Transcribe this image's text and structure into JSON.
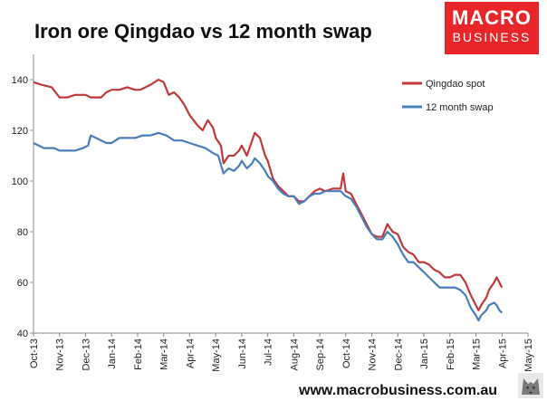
{
  "title": "Iron ore Qingdao vs 12 month swap",
  "logo": {
    "line1": "MACRO",
    "line2": "BUSINESS"
  },
  "footer": "www.macrobusiness.com.au",
  "colors": {
    "spot": "#c0393b",
    "swap": "#4a7ebb",
    "logo_bg": "#e8262a"
  },
  "chart_data": {
    "type": "line",
    "title": "Iron ore Qingdao vs 12 month swap",
    "xlabel": "",
    "ylabel": "",
    "ylim": [
      40,
      150
    ],
    "yticks": [
      40,
      60,
      80,
      100,
      120,
      140
    ],
    "x_ticks": [
      "Oct-13",
      "Nov-13",
      "Dec-13",
      "Jan-14",
      "Feb-14",
      "Mar-14",
      "Apr-14",
      "May-14",
      "Jun-14",
      "Jul-14",
      "Aug-14",
      "Sep-14",
      "Oct-14",
      "Nov-14",
      "Dec-14",
      "Jan-15",
      "Feb-15",
      "Mar-15",
      "Apr-15",
      "May-15"
    ],
    "grid": false,
    "legend_position": "top-right",
    "series": [
      {
        "name": "Qingdao spot",
        "color": "#c0393b",
        "points": [
          [
            0,
            139
          ],
          [
            0.3,
            138
          ],
          [
            0.7,
            137
          ],
          [
            1.0,
            133
          ],
          [
            1.3,
            133
          ],
          [
            1.6,
            134
          ],
          [
            2.0,
            134
          ],
          [
            2.2,
            133
          ],
          [
            2.6,
            133
          ],
          [
            2.8,
            135
          ],
          [
            3.0,
            136
          ],
          [
            3.3,
            136
          ],
          [
            3.6,
            137
          ],
          [
            3.9,
            136
          ],
          [
            4.1,
            136
          ],
          [
            4.5,
            138
          ],
          [
            4.8,
            140
          ],
          [
            5.0,
            139
          ],
          [
            5.2,
            134
          ],
          [
            5.4,
            135
          ],
          [
            5.6,
            133
          ],
          [
            5.8,
            130
          ],
          [
            6.0,
            126
          ],
          [
            6.3,
            122
          ],
          [
            6.5,
            120
          ],
          [
            6.7,
            124
          ],
          [
            6.9,
            121
          ],
          [
            7.0,
            117
          ],
          [
            7.2,
            114
          ],
          [
            7.3,
            107
          ],
          [
            7.5,
            110
          ],
          [
            7.7,
            110
          ],
          [
            7.9,
            112
          ],
          [
            8.0,
            114
          ],
          [
            8.2,
            110
          ],
          [
            8.4,
            116
          ],
          [
            8.5,
            119
          ],
          [
            8.7,
            117
          ],
          [
            8.9,
            110
          ],
          [
            9.0,
            108
          ],
          [
            9.2,
            101
          ],
          [
            9.4,
            98
          ],
          [
            9.6,
            96
          ],
          [
            9.8,
            94
          ],
          [
            10.0,
            94
          ],
          [
            10.2,
            92
          ],
          [
            10.4,
            92
          ],
          [
            10.6,
            94
          ],
          [
            10.8,
            96
          ],
          [
            11.0,
            97
          ],
          [
            11.2,
            96
          ],
          [
            11.5,
            97
          ],
          [
            11.8,
            97
          ],
          [
            11.9,
            103
          ],
          [
            12.0,
            96
          ],
          [
            12.2,
            95
          ],
          [
            12.4,
            91
          ],
          [
            12.6,
            87
          ],
          [
            12.8,
            83
          ],
          [
            13.0,
            79
          ],
          [
            13.2,
            78
          ],
          [
            13.4,
            78
          ],
          [
            13.6,
            83
          ],
          [
            13.8,
            80
          ],
          [
            14.0,
            79
          ],
          [
            14.2,
            74
          ],
          [
            14.4,
            72
          ],
          [
            14.6,
            71
          ],
          [
            14.8,
            68
          ],
          [
            15.0,
            68
          ],
          [
            15.2,
            67
          ],
          [
            15.4,
            65
          ],
          [
            15.6,
            64
          ],
          [
            15.8,
            62
          ],
          [
            16.0,
            62
          ],
          [
            16.2,
            63
          ],
          [
            16.4,
            63
          ],
          [
            16.6,
            60
          ],
          [
            16.8,
            55
          ],
          [
            17.0,
            51
          ],
          [
            17.1,
            49
          ],
          [
            17.2,
            51
          ],
          [
            17.4,
            54
          ],
          [
            17.5,
            57
          ],
          [
            17.7,
            60
          ],
          [
            17.8,
            62
          ],
          [
            17.9,
            60
          ],
          [
            18.0,
            58
          ]
        ]
      },
      {
        "name": "12 month swap",
        "color": "#4a7ebb",
        "points": [
          [
            0,
            115
          ],
          [
            0.4,
            113
          ],
          [
            0.8,
            113
          ],
          [
            1.0,
            112
          ],
          [
            1.3,
            112
          ],
          [
            1.6,
            112
          ],
          [
            1.9,
            113
          ],
          [
            2.1,
            114
          ],
          [
            2.2,
            118
          ],
          [
            2.4,
            117
          ],
          [
            2.6,
            116
          ],
          [
            2.8,
            115
          ],
          [
            3.0,
            115
          ],
          [
            3.3,
            117
          ],
          [
            3.6,
            117
          ],
          [
            3.9,
            117
          ],
          [
            4.2,
            118
          ],
          [
            4.5,
            118
          ],
          [
            4.8,
            119
          ],
          [
            5.1,
            118
          ],
          [
            5.4,
            116
          ],
          [
            5.7,
            116
          ],
          [
            6.0,
            115
          ],
          [
            6.3,
            114
          ],
          [
            6.6,
            113
          ],
          [
            6.9,
            111
          ],
          [
            7.1,
            110
          ],
          [
            7.3,
            103
          ],
          [
            7.5,
            105
          ],
          [
            7.7,
            104
          ],
          [
            7.9,
            106
          ],
          [
            8.0,
            108
          ],
          [
            8.2,
            105
          ],
          [
            8.4,
            107
          ],
          [
            8.5,
            109
          ],
          [
            8.7,
            107
          ],
          [
            8.9,
            104
          ],
          [
            9.0,
            102
          ],
          [
            9.2,
            100
          ],
          [
            9.4,
            97
          ],
          [
            9.6,
            95
          ],
          [
            9.8,
            94
          ],
          [
            10.0,
            94
          ],
          [
            10.2,
            91
          ],
          [
            10.4,
            92
          ],
          [
            10.6,
            94
          ],
          [
            10.8,
            95
          ],
          [
            11.0,
            95
          ],
          [
            11.2,
            96
          ],
          [
            11.5,
            96
          ],
          [
            11.8,
            96
          ],
          [
            12.0,
            94
          ],
          [
            12.2,
            93
          ],
          [
            12.4,
            90
          ],
          [
            12.6,
            86
          ],
          [
            12.8,
            82
          ],
          [
            13.0,
            79
          ],
          [
            13.2,
            77
          ],
          [
            13.4,
            77
          ],
          [
            13.6,
            80
          ],
          [
            13.8,
            78
          ],
          [
            14.0,
            75
          ],
          [
            14.2,
            71
          ],
          [
            14.4,
            68
          ],
          [
            14.6,
            68
          ],
          [
            14.8,
            66
          ],
          [
            15.0,
            64
          ],
          [
            15.2,
            62
          ],
          [
            15.4,
            60
          ],
          [
            15.6,
            58
          ],
          [
            15.8,
            58
          ],
          [
            16.0,
            58
          ],
          [
            16.2,
            58
          ],
          [
            16.4,
            57
          ],
          [
            16.6,
            55
          ],
          [
            16.8,
            50
          ],
          [
            17.0,
            47
          ],
          [
            17.1,
            45
          ],
          [
            17.2,
            47
          ],
          [
            17.4,
            49
          ],
          [
            17.5,
            51
          ],
          [
            17.7,
            52
          ],
          [
            17.8,
            51
          ],
          [
            17.9,
            49
          ],
          [
            18.0,
            48
          ]
        ]
      }
    ]
  }
}
